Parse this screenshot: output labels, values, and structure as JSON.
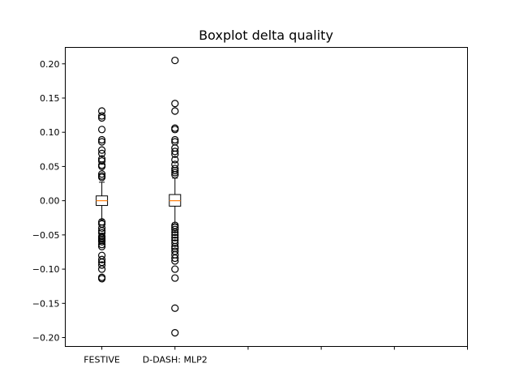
{
  "chart_data": {
    "type": "boxplot",
    "title": "Boxplot delta quality",
    "xlabel": "",
    "ylabel": "",
    "ylim": [
      -0.213,
      0.224
    ],
    "yticks": [
      -0.2,
      -0.15,
      -0.1,
      -0.05,
      0.0,
      0.05,
      0.1,
      0.15,
      0.2
    ],
    "ytick_labels": [
      "−0.20",
      "−0.15",
      "−0.10",
      "−0.05",
      "0.00",
      "0.05",
      "0.10",
      "0.15",
      "0.20"
    ],
    "xticks": [
      1,
      2,
      3,
      4,
      5,
      6
    ],
    "xtick_labels": [
      "FESTIVE",
      "D-DASH: MLP2",
      "",
      "",
      "",
      ""
    ],
    "xlim": [
      0.5,
      6.0
    ],
    "grid": false,
    "colors": {
      "box": "#000000",
      "median": "#ff7f0e",
      "flier": "#000000"
    },
    "boxes": [
      {
        "name": "FESTIVE",
        "position": 1,
        "whisker_low": -0.028,
        "q1": -0.007,
        "median": 0.0,
        "q3": 0.007,
        "whisker_high": 0.027,
        "fliers": [
          0.131,
          0.124,
          0.121,
          0.104,
          0.089,
          0.086,
          0.074,
          0.069,
          0.061,
          0.058,
          0.052,
          0.05,
          0.039,
          0.036,
          0.034,
          -0.031,
          -0.034,
          -0.04,
          -0.044,
          -0.047,
          -0.052,
          -0.054,
          -0.056,
          -0.058,
          -0.06,
          -0.064,
          -0.067,
          -0.08,
          -0.086,
          -0.09,
          -0.094,
          -0.1,
          -0.112,
          -0.114
        ]
      },
      {
        "name": "D-DASH: MLP2",
        "position": 2,
        "whisker_low": -0.034,
        "q1": -0.008,
        "median": 0.0,
        "q3": 0.009,
        "whisker_high": 0.033,
        "fliers": [
          0.205,
          0.142,
          0.131,
          0.106,
          0.104,
          0.089,
          0.086,
          0.077,
          0.072,
          0.068,
          0.06,
          0.053,
          0.047,
          0.044,
          0.041,
          0.038,
          -0.036,
          -0.039,
          -0.042,
          -0.046,
          -0.05,
          -0.054,
          -0.058,
          -0.062,
          -0.067,
          -0.07,
          -0.074,
          -0.079,
          -0.084,
          -0.088,
          -0.1,
          -0.113,
          -0.157,
          -0.193
        ]
      }
    ]
  }
}
